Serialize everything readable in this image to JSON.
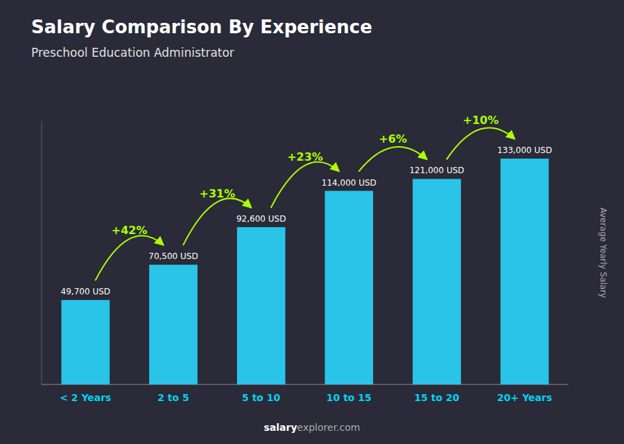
{
  "chart_data": {
    "type": "bar",
    "title": "Salary Comparison By Experience",
    "subtitle": "Preschool Education Administrator",
    "ylabel": "Average Yearly Salary",
    "categories": [
      "< 2 Years",
      "2 to 5",
      "5 to 10",
      "10 to 15",
      "15 to 20",
      "20+ Years"
    ],
    "values": [
      49700,
      70500,
      92600,
      114000,
      121000,
      133000
    ],
    "value_labels": [
      "49,700 USD",
      "70,500 USD",
      "92,600 USD",
      "114,000 USD",
      "121,000 USD",
      "133,000 USD"
    ],
    "annotations": [
      null,
      "+42%",
      "+31%",
      "+23%",
      "+6%",
      "+10%"
    ],
    "footer": [
      "salary",
      "explorer.com"
    ],
    "color": "#29c4e8",
    "ylim": [
      0,
      155000
    ],
    "yticks": [],
    "tick_labels": "x",
    "data_labels": true,
    "grid": false
  }
}
